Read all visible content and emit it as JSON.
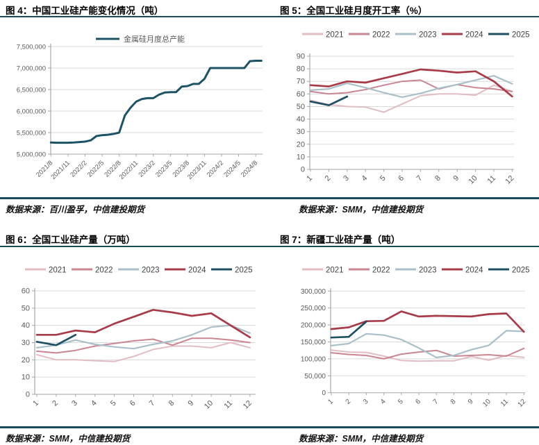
{
  "colors": {
    "divider": "#17495c",
    "grid": "#d9d9d9",
    "axis": "#a6a6a6",
    "axis_label": "#595959",
    "legend_label": "#404040"
  },
  "chart_data": [
    {
      "id": "fig4",
      "type": "line",
      "title": "图 4：中国工业硅产能变化情况（吨）",
      "source_note": "数据来源：百川盈孚，中信建投期货",
      "ylabel": "",
      "ylim": [
        5000000,
        7500000
      ],
      "y_step": 500000,
      "y_format": "comma",
      "grid": true,
      "legend_position": "top-center",
      "x_tick_every": 3,
      "x_tick_labels": [
        "2021/8",
        "2021/11",
        "2022/2",
        "2022/5",
        "2022/8",
        "2022/11",
        "2023/2",
        "2023/5",
        "2023/8",
        "2023/11",
        "2024/2",
        "2024/5",
        "2024/8"
      ],
      "series": [
        {
          "name": "金属硅月度总产能",
          "color": "#1c5266",
          "width": 3,
          "values": [
            5270000,
            5265000,
            5265000,
            5265000,
            5270000,
            5280000,
            5290000,
            5320000,
            5420000,
            5440000,
            5450000,
            5470000,
            5500000,
            5900000,
            6080000,
            6220000,
            6280000,
            6300000,
            6300000,
            6380000,
            6430000,
            6440000,
            6440000,
            6570000,
            6580000,
            6630000,
            6630000,
            6750000,
            7000000,
            7000000,
            7000000,
            7000000,
            7000000,
            7000000,
            7000000,
            7160000,
            7170000,
            7170000
          ]
        }
      ]
    },
    {
      "id": "fig5",
      "type": "line",
      "title": "图 5：全国工业硅月度开工率（%）",
      "source_note": "数据来源：SMM，中信建投期货",
      "ylim": [
        0,
        90
      ],
      "y_step": 10,
      "y_format": "plain",
      "grid": true,
      "legend_position": "top",
      "categories": [
        "1",
        "2",
        "3",
        "4",
        "5",
        "6",
        "7",
        "8",
        "9",
        "10",
        "11",
        "12"
      ],
      "series": [
        {
          "name": "2021",
          "color": "#e2bcc3",
          "width": 2,
          "values": [
            55,
            51.5,
            50,
            49.5,
            45.5,
            52,
            58.5,
            60,
            60,
            59,
            67,
            62
          ]
        },
        {
          "name": "2022",
          "color": "#ca8590",
          "width": 2,
          "values": [
            62,
            60,
            61,
            63.5,
            67,
            70,
            71,
            64,
            67.5,
            65,
            64,
            62
          ]
        },
        {
          "name": "2023",
          "color": "#a9bfca",
          "width": 2.2,
          "values": [
            63,
            64,
            68.5,
            65,
            61,
            57.5,
            60.5,
            64.5,
            67.5,
            71,
            74.5,
            68
          ]
        },
        {
          "name": "2024",
          "color": "#a83b48",
          "width": 2.7,
          "values": [
            67,
            66,
            70,
            69,
            72.5,
            76,
            79.5,
            78.5,
            77,
            78,
            70,
            58
          ]
        },
        {
          "name": "2025",
          "color": "#1e4f63",
          "width": 2.7,
          "values": [
            54,
            51,
            58
          ]
        }
      ]
    },
    {
      "id": "fig6",
      "type": "line",
      "title": "图 6：全国工业硅产量（万吨）",
      "source_note": "数据来源：SMM，中信建投期货",
      "ylim": [
        0,
        60
      ],
      "y_step": 10,
      "y_format": "plain",
      "grid": true,
      "legend_position": "top",
      "categories": [
        "1",
        "2",
        "3",
        "4",
        "5",
        "6",
        "7",
        "8",
        "9",
        "10",
        "11",
        "12"
      ],
      "series": [
        {
          "name": "2021",
          "color": "#e2bcc3",
          "width": 2,
          "values": [
            23,
            20,
            20,
            19.5,
            19,
            22,
            26,
            28,
            28,
            27,
            30,
            27
          ]
        },
        {
          "name": "2022",
          "color": "#ca8590",
          "width": 2,
          "values": [
            25,
            24,
            25.5,
            28,
            29.5,
            31,
            32,
            28.5,
            32.5,
            32.5,
            31.5,
            30
          ]
        },
        {
          "name": "2023",
          "color": "#a9bfca",
          "width": 2.2,
          "values": [
            27,
            28.5,
            31.5,
            29,
            27.5,
            26.5,
            29,
            31,
            34.5,
            39,
            40,
            35.5
          ]
        },
        {
          "name": "2024",
          "color": "#a83b48",
          "width": 2.7,
          "values": [
            34.5,
            34.5,
            37,
            36,
            41,
            45,
            49,
            47.5,
            45.5,
            47,
            40,
            33
          ]
        },
        {
          "name": "2025",
          "color": "#1e4f63",
          "width": 2.7,
          "values": [
            30.5,
            28.5,
            34.5
          ]
        }
      ]
    },
    {
      "id": "fig7",
      "type": "line",
      "title": "图 7：新疆工业硅产量（吨）",
      "source_note": "数据来源：SMM，中信建投期货",
      "ylim": [
        0,
        300000
      ],
      "y_step": 50000,
      "y_format": "comma",
      "grid": true,
      "legend_position": "top",
      "categories": [
        "1",
        "2",
        "3",
        "4",
        "5",
        "6",
        "7",
        "8",
        "9",
        "10",
        "11",
        "12"
      ],
      "series": [
        {
          "name": "2021",
          "color": "#e2bcc3",
          "width": 2,
          "values": [
            126000,
            120000,
            119000,
            108000,
            95000,
            93000,
            94000,
            94000,
            107000,
            96000,
            110000,
            104000
          ]
        },
        {
          "name": "2022",
          "color": "#ca8590",
          "width": 2,
          "values": [
            118000,
            113000,
            110000,
            100000,
            114000,
            120000,
            125000,
            108000,
            110000,
            112000,
            108000,
            131000
          ]
        },
        {
          "name": "2023",
          "color": "#a9bfca",
          "width": 2.2,
          "values": [
            139000,
            145000,
            174000,
            170000,
            157000,
            132000,
            104000,
            110000,
            127000,
            140000,
            183000,
            181000
          ]
        },
        {
          "name": "2024",
          "color": "#a83b48",
          "width": 2.7,
          "values": [
            188000,
            193000,
            211000,
            212000,
            240000,
            225000,
            227000,
            226000,
            225000,
            232000,
            234000,
            180000
          ]
        },
        {
          "name": "2025",
          "color": "#1e4f63",
          "width": 2.7,
          "values": [
            163000,
            165000,
            210000
          ]
        }
      ]
    }
  ]
}
